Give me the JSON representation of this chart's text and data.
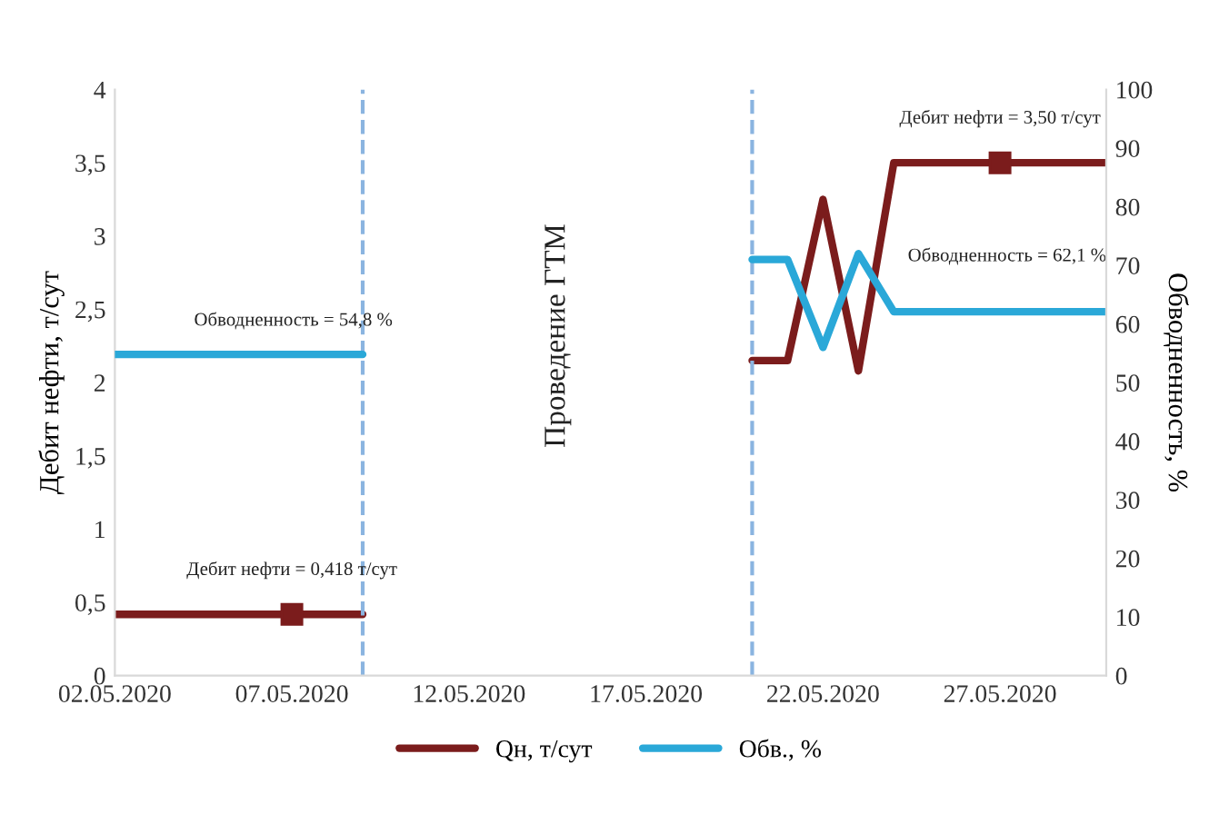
{
  "chart_data": {
    "type": "line",
    "xlabel": null,
    "ylabel": "Дебит нефти, т/сут",
    "y2label": "Обводненность, %",
    "x": [
      "2020-05-02",
      "2020-05-07",
      "2020-05-09",
      "2020-05-15",
      "2020-05-20",
      "2020-05-21",
      "2020-05-22",
      "2020-05-23",
      "2020-05-24",
      "2020-05-27",
      "2020-05-30"
    ],
    "series": [
      {
        "name": "Qн, т/сут",
        "color": "#7b1c1c",
        "values": [
          0.418,
          0.418,
          0.418,
          null,
          2.15,
          2.15,
          3.25,
          2.08,
          3.5,
          3.5,
          3.5
        ]
      },
      {
        "name": "Обв., %",
        "color": "#2aa8d8",
        "axis": "y2",
        "values": [
          54.8,
          54.8,
          54.8,
          null,
          71,
          71,
          56,
          72,
          62.1,
          62.1,
          62.1
        ]
      }
    ],
    "xlim": [
      "2020-05-02",
      "2020-05-30"
    ],
    "xticks": [
      {
        "value": "2020-05-02",
        "label": "02.05.2020"
      },
      {
        "value": "2020-05-07",
        "label": "07.05.2020"
      },
      {
        "value": "2020-05-12",
        "label": "12.05.2020"
      },
      {
        "value": "2020-05-17",
        "label": "17.05.2020"
      },
      {
        "value": "2020-05-22",
        "label": "22.05.2020"
      },
      {
        "value": "2020-05-27",
        "label": "27.05.2020"
      }
    ],
    "ylim": [
      0,
      4
    ],
    "yticks": [
      0,
      {
        "value": 0.5,
        "label": "0,5"
      },
      1,
      {
        "value": 1.5,
        "label": "1,5"
      },
      2,
      {
        "value": 2.5,
        "label": "2,5"
      },
      3,
      {
        "value": 3.5,
        "label": "3,5"
      },
      4
    ],
    "y2lim": [
      0,
      100
    ],
    "y2ticks": [
      0,
      10,
      20,
      30,
      40,
      50,
      60,
      70,
      80,
      90,
      100
    ],
    "ref_lines": [
      {
        "axis": "x",
        "value": "2020-05-09",
        "color": "#8ab4e0",
        "line_style": "dashed"
      },
      {
        "axis": "x",
        "value": "2020-05-20",
        "color": "#8ab4e0",
        "line_style": "dashed"
      }
    ],
    "annotations": [
      {
        "text": "Дебит нефти = 0,418 т/сут",
        "x": "2020-05-07",
        "y": 0.418
      },
      "Обводненность = 54,8 %",
      {
        "text": "Дебит нефти = 3,50 т/сут",
        "x": "2020-05-27",
        "y": 3.5
      },
      "Обводненность = 62,1 %",
      "Проведение ГТМ"
    ],
    "legend": "bottom",
    "grid": false,
    "line_style": "solid"
  }
}
